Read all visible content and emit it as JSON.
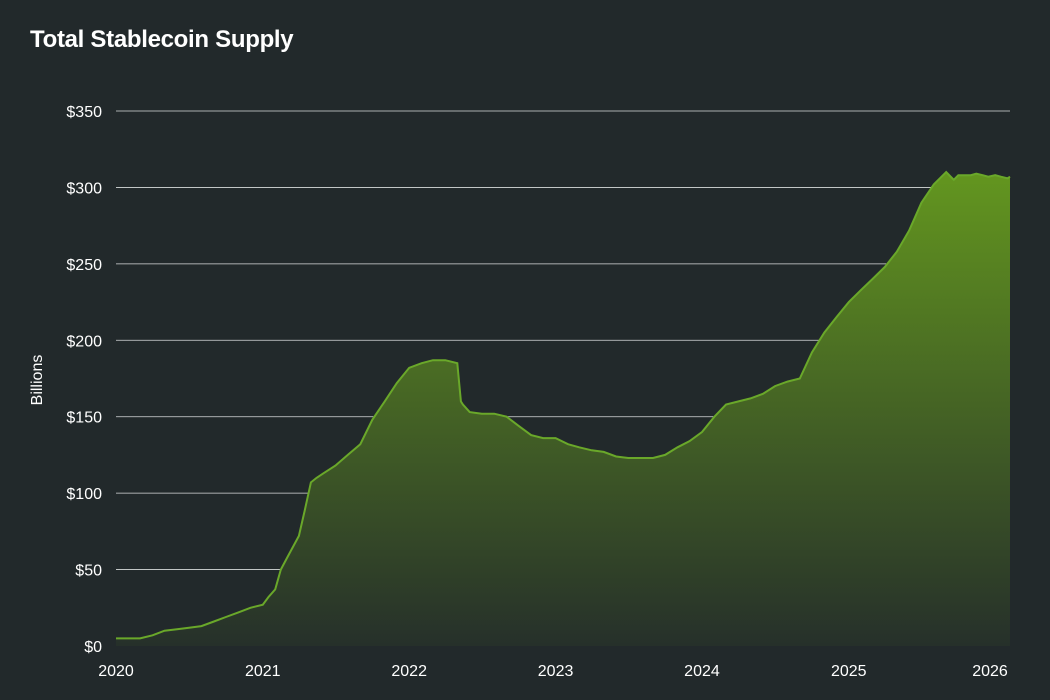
{
  "chart_data": {
    "type": "area",
    "title": "Total Stablecoin Supply",
    "xlabel": "",
    "ylabel": "Billions",
    "ylim": [
      0,
      350
    ],
    "xlim": [
      "2020-01-01",
      "2026-02-07"
    ],
    "x_ticks": [
      "2020",
      "2021",
      "2022",
      "2023",
      "2024",
      "2025",
      "2026"
    ],
    "y_ticks": [
      "$0",
      "$50",
      "$100",
      "$150",
      "$200",
      "$250",
      "$300",
      "$350"
    ],
    "grid": true,
    "legend": "none",
    "series": [
      {
        "x": [
          "2020-01-01",
          "2020-03-01",
          "2020-04-01",
          "2020-05-01",
          "2020-06-01",
          "2020-07-01",
          "2020-08-01",
          "2020-09-01",
          "2020-10-01",
          "2020-11-01",
          "2020-12-01",
          "2021-01-01",
          "2021-01-15",
          "2021-02-01",
          "2021-02-15",
          "2021-03-01",
          "2021-04-01",
          "2021-04-15",
          "2021-05-01",
          "2021-05-15",
          "2021-06-01",
          "2021-07-01",
          "2021-08-01",
          "2021-09-01",
          "2021-10-01",
          "2021-11-01",
          "2021-12-01",
          "2022-01-01",
          "2022-02-01",
          "2022-03-01",
          "2022-04-01",
          "2022-05-01",
          "2022-05-10",
          "2022-05-15",
          "2022-06-01",
          "2022-07-01",
          "2022-08-01",
          "2022-09-01",
          "2022-10-01",
          "2022-11-01",
          "2022-12-01",
          "2023-01-01",
          "2023-02-01",
          "2023-03-01",
          "2023-04-01",
          "2023-05-01",
          "2023-06-01",
          "2023-07-01",
          "2023-08-01",
          "2023-09-01",
          "2023-10-01",
          "2023-11-01",
          "2023-12-01",
          "2024-01-01",
          "2024-02-01",
          "2024-03-01",
          "2024-04-01",
          "2024-05-01",
          "2024-06-01",
          "2024-07-01",
          "2024-08-01",
          "2024-09-01",
          "2024-10-01",
          "2024-11-01",
          "2024-12-01",
          "2025-01-01",
          "2025-02-01",
          "2025-03-01",
          "2025-04-01",
          "2025-05-01",
          "2025-06-01",
          "2025-07-01",
          "2025-08-01",
          "2025-09-01",
          "2025-09-20",
          "2025-10-01",
          "2025-10-15",
          "2025-11-01",
          "2025-11-15",
          "2025-12-01",
          "2025-12-15",
          "2026-01-01",
          "2026-01-15",
          "2026-02-01",
          "2026-02-07"
        ],
        "values": [
          5,
          5,
          7,
          10,
          11,
          12,
          13,
          16,
          19,
          22,
          25,
          27,
          32,
          37,
          50,
          57,
          72,
          88,
          107,
          110,
          113,
          118,
          125,
          132,
          148,
          160,
          172,
          182,
          185,
          187,
          187,
          185,
          160,
          158,
          153,
          152,
          152,
          150,
          144,
          138,
          136,
          136,
          132,
          130,
          128,
          127,
          124,
          123,
          123,
          123,
          125,
          130,
          134,
          140,
          150,
          158,
          160,
          162,
          165,
          170,
          173,
          175,
          192,
          205,
          215,
          225,
          233,
          240,
          248,
          258,
          272,
          290,
          302,
          310,
          305,
          308,
          308,
          308,
          309,
          308,
          307,
          308,
          307,
          306,
          307
        ]
      }
    ]
  },
  "colors": {
    "background": "#22292b",
    "line": "#6aa82a",
    "area_top": "#63961f",
    "area_bottom": "#26302a",
    "grid": "#d9dcdc",
    "text": "#ffffff"
  }
}
